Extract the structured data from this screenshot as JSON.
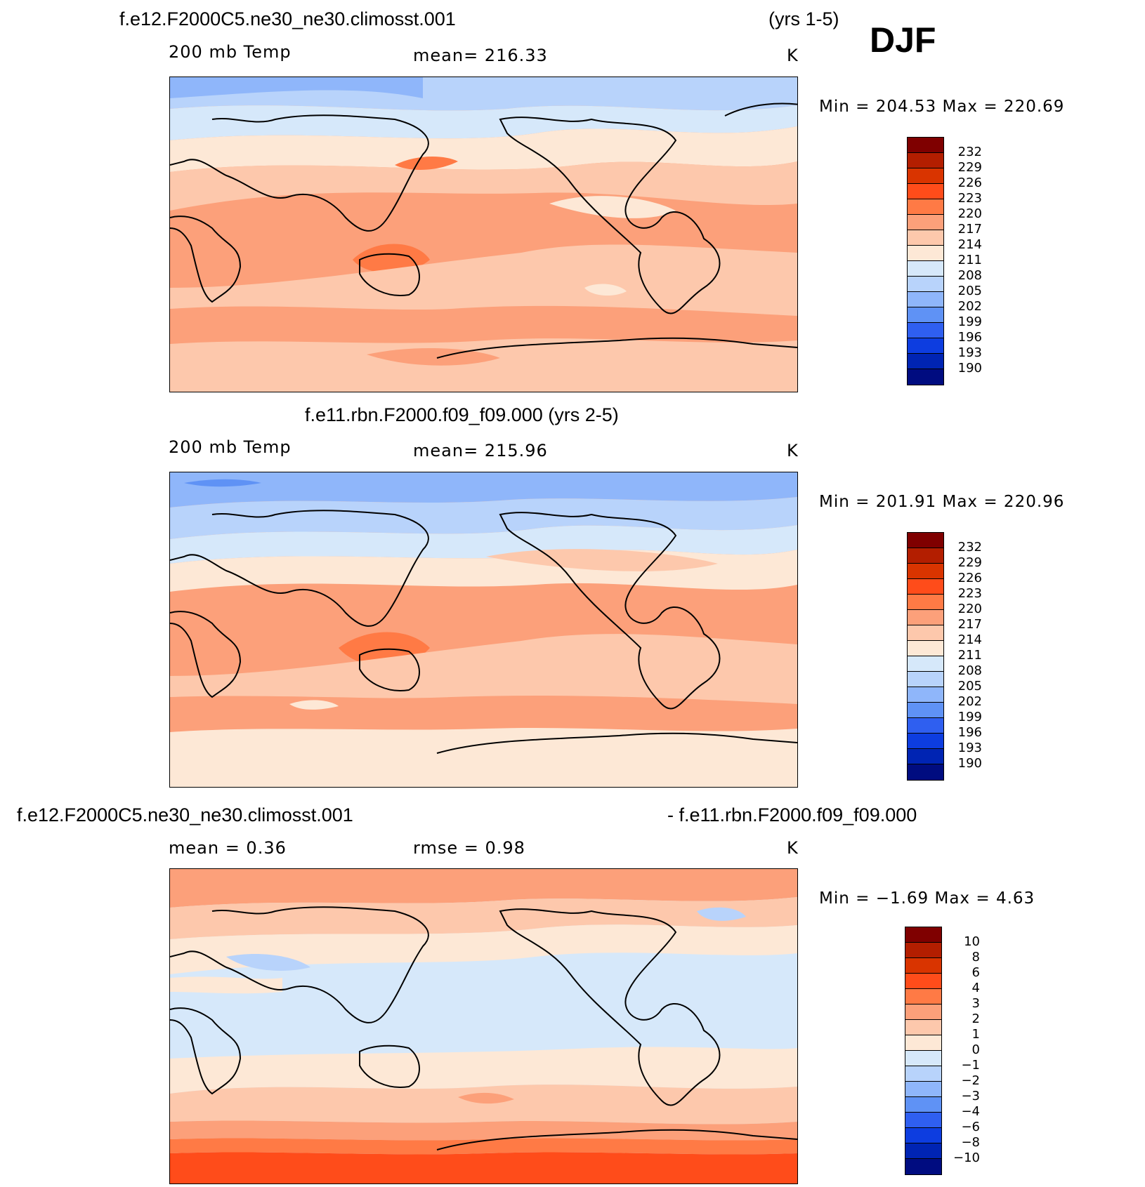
{
  "season": "DJF",
  "colors": {
    "temp_bins": [
      "#7f0000",
      "#b31e00",
      "#d93400",
      "#ff4c1a",
      "#ff7a45",
      "#fca07a",
      "#fdc8ac",
      "#fde8d6",
      "#d6e8fa",
      "#b8d3fb",
      "#8fb6fa",
      "#5f92f5",
      "#2f5ff0",
      "#0d3de0",
      "#0024b3",
      "#000c80"
    ],
    "diff_bins": [
      "#7f0000",
      "#b31e00",
      "#d93400",
      "#ff4c1a",
      "#ff7a45",
      "#fca07a",
      "#fdc8ac",
      "#fde8d6",
      "#d6e8fa",
      "#b8d3fb",
      "#8fb6fa",
      "#5f92f5",
      "#2f5ff0",
      "#0d3de0",
      "#0024b3",
      "#000c80"
    ]
  },
  "panels": [
    {
      "title_left": "f.e12.F2000C5.ne30_ne30.climosst.001",
      "title_right": "(yrs 1-5)",
      "variable": "200 mb Temp",
      "mean_label": "mean=  216.33",
      "units": "K",
      "minmax": "Min  =  204.53  Max  =  220.69",
      "levels": [
        "232",
        "229",
        "226",
        "223",
        "220",
        "217",
        "214",
        "211",
        "208",
        "205",
        "202",
        "199",
        "196",
        "193",
        "190"
      ]
    },
    {
      "title_center": "f.e11.rbn.F2000.f09_f09.000 (yrs 2-5)",
      "variable": "200 mb Temp",
      "mean_label": "mean=  215.96",
      "units": "K",
      "minmax": "Min  =  201.91  Max  =  220.96",
      "levels": [
        "232",
        "229",
        "226",
        "223",
        "220",
        "217",
        "214",
        "211",
        "208",
        "205",
        "202",
        "199",
        "196",
        "193",
        "190"
      ]
    },
    {
      "title_left": "f.e12.F2000C5.ne30_ne30.climosst.001",
      "title_right": "- f.e11.rbn.F2000.f09_f09.000",
      "mean_label": "mean  =      0.36",
      "rmse_label": "rmse  =      0.98",
      "units": "K",
      "minmax": "Min  =    −1.69  Max  =      4.63",
      "levels": [
        "10",
        "8",
        "6",
        "4",
        "3",
        "2",
        "1",
        "0",
        "−1",
        "−2",
        "−3",
        "−4",
        "−6",
        "−8",
        "−10"
      ]
    }
  ]
}
